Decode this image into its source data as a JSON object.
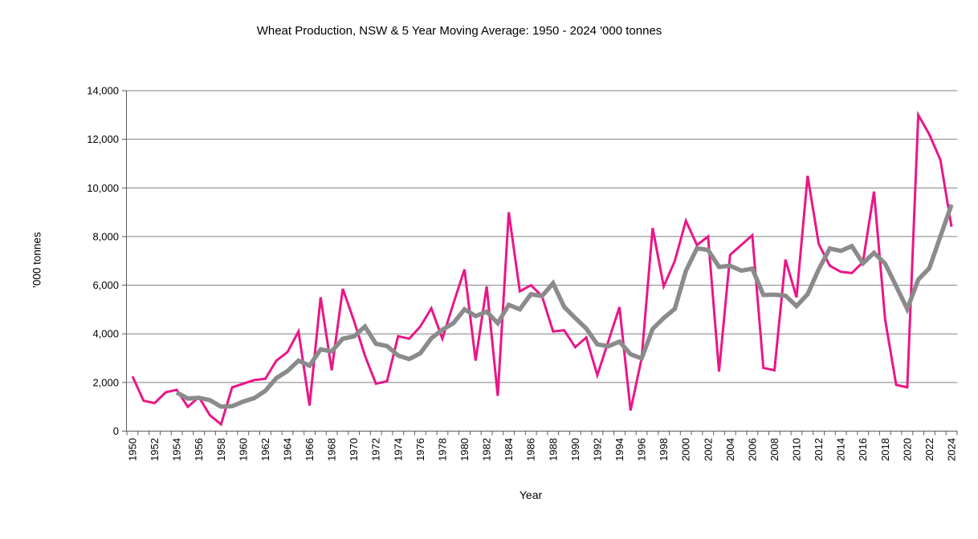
{
  "title": "Wheat  Production, NSW & 5 Year Moving Average: 1950 - 2024 '000 tonnes",
  "x_axis": {
    "label": "Year",
    "label_interval_years": 2
  },
  "y_axis": {
    "label": "'000 tonnes",
    "min": 0,
    "max": 14000,
    "tick_step": 2000
  },
  "colors": {
    "production_line": "#EB1588",
    "moving_average_line": "#8B8B8B",
    "gridline": "#808080",
    "axis": "#595959",
    "text": "#000000",
    "background": "#FFFFFF"
  },
  "chart_data": {
    "type": "line",
    "title": "Wheat  Production, NSW & 5 Year Moving Average: 1950 - 2024 '000 tonnes",
    "xlabel": "Year",
    "ylabel": "'000 tonnes",
    "ylim": [
      0,
      14000
    ],
    "grid": true,
    "legend_position": "none",
    "x": [
      1950,
      1951,
      1952,
      1953,
      1954,
      1955,
      1956,
      1957,
      1958,
      1959,
      1960,
      1961,
      1962,
      1963,
      1964,
      1965,
      1966,
      1967,
      1968,
      1969,
      1970,
      1971,
      1972,
      1973,
      1974,
      1975,
      1976,
      1977,
      1978,
      1979,
      1980,
      1981,
      1982,
      1983,
      1984,
      1985,
      1986,
      1987,
      1988,
      1989,
      1990,
      1991,
      1992,
      1993,
      1994,
      1995,
      1996,
      1997,
      1998,
      1999,
      2000,
      2001,
      2002,
      2003,
      2004,
      2005,
      2006,
      2007,
      2008,
      2009,
      2010,
      2011,
      2012,
      2013,
      2014,
      2015,
      2016,
      2017,
      2018,
      2019,
      2020,
      2021,
      2022,
      2023,
      2024
    ],
    "series": [
      {
        "name": "NSW Wheat Production",
        "color": "#EB1588",
        "values": [
          2250,
          1250,
          1150,
          1600,
          1700,
          1000,
          1400,
          650,
          280,
          1800,
          1950,
          2100,
          2150,
          2900,
          3250,
          4100,
          1050,
          5500,
          2500,
          5850,
          4550,
          3100,
          1950,
          2050,
          3900,
          3800,
          4300,
          5050,
          3800,
          5250,
          6650,
          2900,
          5950,
          1450,
          9000,
          5750,
          6000,
          5550,
          4100,
          4150,
          3450,
          3850,
          2300,
          3700,
          5100,
          850,
          3000,
          8350,
          5950,
          7000,
          8650,
          7650,
          8000,
          2450,
          7250,
          7650,
          8050,
          2600,
          2500,
          7050,
          5500,
          10500,
          7700,
          6800,
          6550,
          6500,
          6950,
          9850,
          4600,
          1900,
          1800,
          13000,
          12200,
          11150,
          8400
        ]
      },
      {
        "name": "5 Year Moving Average",
        "color": "#8B8B8B",
        "values": [
          null,
          null,
          null,
          null,
          1590,
          1340,
          1370,
          1270,
          1005,
          1025,
          1215,
          1355,
          1655,
          2180,
          2470,
          2900,
          2690,
          3360,
          3280,
          3800,
          3890,
          4300,
          3590,
          3500,
          3110,
          2960,
          3200,
          3820,
          4170,
          4440,
          5010,
          4730,
          4910,
          4440,
          5190,
          5010,
          5630,
          5550,
          6080,
          5110,
          4650,
          4220,
          3570,
          3490,
          3680,
          3160,
          2990,
          4200,
          4650,
          5030,
          6590,
          7520,
          7450,
          6750,
          6800,
          6600,
          6680,
          5600,
          5610,
          5570,
          5140,
          5630,
          6650,
          7510,
          7410,
          7610,
          6900,
          7330,
          6890,
          5960,
          5020,
          6230,
          6700,
          8010,
          9310
        ]
      }
    ]
  }
}
